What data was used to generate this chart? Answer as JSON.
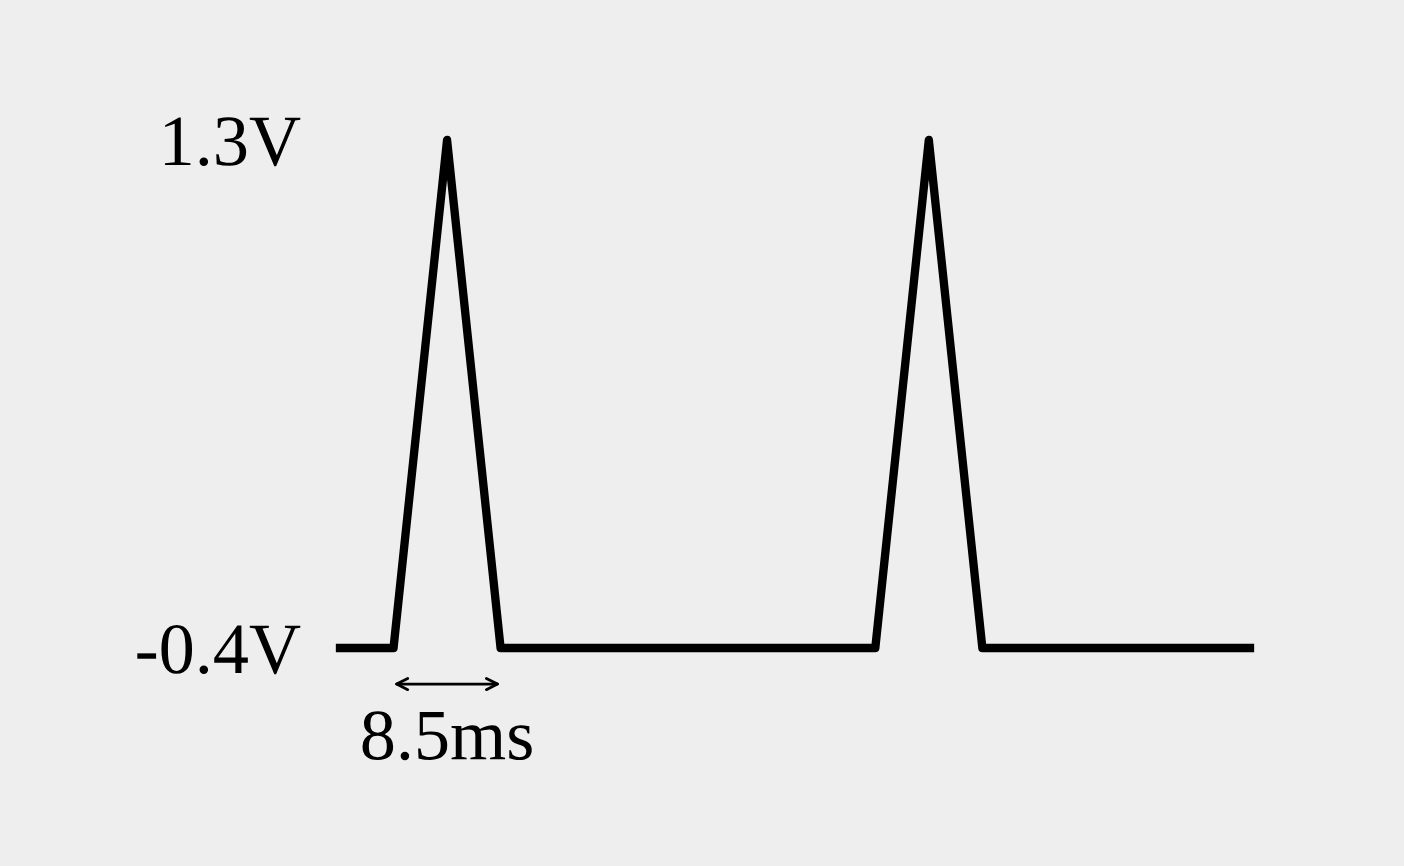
{
  "chart_data": {
    "type": "line",
    "categories": [
      null,
      null,
      null,
      null,
      null,
      null,
      null,
      null,
      null,
      null,
      null,
      null,
      null,
      null,
      null,
      null,
      null,
      null
    ],
    "series": [
      {
        "color": "#000000",
        "values": [
          -0.4,
          -0.4,
          1.3,
          -0.4,
          -0.4,
          -0.4,
          -0.4,
          -0.4,
          -0.4,
          -0.4,
          -0.4,
          1.3,
          -0.4,
          -0.4,
          -0.4,
          -0.4,
          -0.4,
          -0.4
        ]
      }
    ],
    "ylim": [
      -0.4,
      1.3
    ],
    "yticks": [
      {
        "value": 1.3,
        "label": "1.3V"
      },
      {
        "value": -0.4,
        "label": "-0.4V"
      }
    ],
    "tick_labels": "y",
    "grid": false,
    "legend": false,
    "marker": "none",
    "line_style": "solid",
    "annotations": [
      "8.5ms"
    ]
  }
}
